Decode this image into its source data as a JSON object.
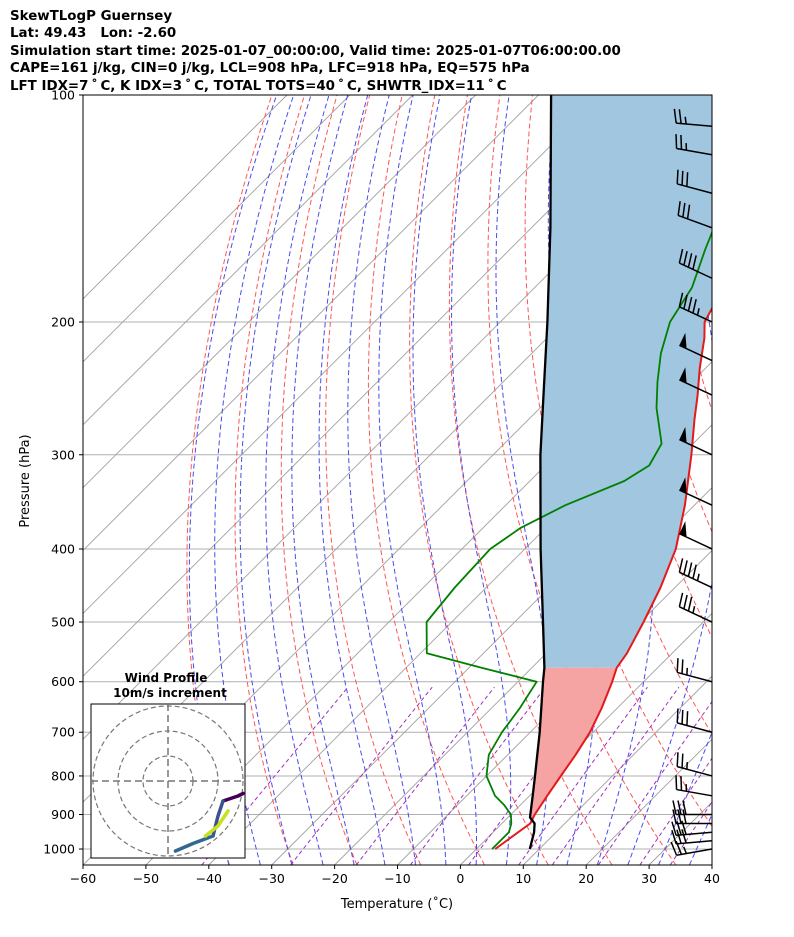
{
  "header": {
    "line1": "SkewTLogP Guernsey",
    "line2": "Lat: 49.43   Lon: -2.60",
    "line3": "Simulation start time: 2025-01-07_00:00:00, Valid time: 2025-01-07T06:00:00.00",
    "line4": "CAPE=161 j/kg, CIN=0 j/kg, LCL=908 hPa, LFC=918 hPa, EQ=575 hPa",
    "line5": "LFT IDX=7 ˚ C, K IDX=3 ˚ C, TOTAL TOTS=40 ˚ C, SHWTR_IDX=11 ˚ C"
  },
  "chart_data": {
    "type": "line",
    "subtype": "skew-t log-p",
    "xlabel": "Temperature (˚C)",
    "ylabel": "Pressure (hPa)",
    "xlim": [
      -60,
      40
    ],
    "ylim": [
      1050,
      100
    ],
    "yscale": "log",
    "x_ticks": [
      "−60",
      "−50",
      "−40",
      "−30",
      "−20",
      "−10",
      "0",
      "10",
      "20",
      "30",
      "40"
    ],
    "x_tick_values": [
      -60,
      -50,
      -40,
      -30,
      -20,
      -10,
      0,
      10,
      20,
      30,
      40
    ],
    "y_ticks": [
      "1000",
      "900",
      "800",
      "700",
      "600",
      "500",
      "400",
      "300",
      "200",
      "100"
    ],
    "y_tick_values": [
      1000,
      900,
      800,
      700,
      600,
      500,
      400,
      300,
      200,
      100
    ],
    "grid": true,
    "series": [
      {
        "color": "#e31a1c",
        "points": [
          [
            1000,
            3.0
          ],
          [
            925,
            4.5
          ],
          [
            900,
            3.8
          ],
          [
            850,
            2.8
          ],
          [
            800,
            1.8
          ],
          [
            750,
            0.8
          ],
          [
            700,
            -0.5
          ],
          [
            650,
            -2.5
          ],
          [
            600,
            -5.0
          ],
          [
            575,
            -6.5
          ],
          [
            550,
            -7.2
          ],
          [
            500,
            -9.5
          ],
          [
            450,
            -12.3
          ],
          [
            400,
            -16.0
          ],
          [
            350,
            -21.5
          ],
          [
            300,
            -28.5
          ],
          [
            270,
            -33.5
          ],
          [
            250,
            -37.0
          ],
          [
            230,
            -41.0
          ],
          [
            210,
            -45.0
          ],
          [
            200,
            -47.5
          ],
          [
            180,
            -50.0
          ],
          [
            160,
            -52.0
          ],
          [
            140,
            -54.0
          ],
          [
            120,
            -56.5
          ],
          [
            100,
            -60.5
          ]
        ]
      },
      {
        "color": "#008000",
        "points": [
          [
            1000,
            2.5
          ],
          [
            950,
            2.5
          ],
          [
            925,
            1.5
          ],
          [
            900,
            0.0
          ],
          [
            875,
            -2.5
          ],
          [
            850,
            -5.5
          ],
          [
            800,
            -10.0
          ],
          [
            750,
            -13.0
          ],
          [
            700,
            -14.5
          ],
          [
            650,
            -15.5
          ],
          [
            600,
            -17.0
          ],
          [
            575,
            -28.0
          ],
          [
            550,
            -39.0
          ],
          [
            500,
            -44.0
          ],
          [
            450,
            -45.0
          ],
          [
            400,
            -45.5
          ],
          [
            375,
            -44.0
          ],
          [
            350,
            -40.5
          ],
          [
            325,
            -35.0
          ],
          [
            310,
            -33.5
          ],
          [
            290,
            -35.0
          ],
          [
            260,
            -41.5
          ],
          [
            240,
            -45.5
          ],
          [
            220,
            -49.5
          ],
          [
            200,
            -53.0
          ],
          [
            180,
            -55.0
          ],
          [
            160,
            -59.0
          ],
          [
            150,
            -61.0
          ],
          [
            130,
            -62.0
          ],
          [
            100,
            -63.0
          ]
        ]
      },
      {
        "color": "#000000",
        "points": [
          [
            1000,
            8.5
          ],
          [
            950,
            6.5
          ],
          [
            925,
            5.2
          ],
          [
            908,
            3.5
          ],
          [
            850,
            0.5
          ],
          [
            800,
            -2.3
          ],
          [
            700,
            -8.5
          ],
          [
            600,
            -16.0
          ],
          [
            575,
            -18.0
          ],
          [
            500,
            -25.5
          ],
          [
            400,
            -37.5
          ],
          [
            300,
            -52.5
          ],
          [
            250,
            -61.5
          ],
          [
            200,
            -72.5
          ],
          [
            150,
            -87.0
          ],
          [
            100,
            -108.0
          ]
        ]
      }
    ],
    "shaded_regions": [
      {
        "color": "#a1c6e0",
        "between": "red and black lines",
        "from_hPa": 575,
        "to_hPa": 100
      },
      {
        "color": "#f5a3a3",
        "between": "red and black lines",
        "from_hPa": 918,
        "to_hPa": 575
      }
    ],
    "reference_lines": [
      {
        "kind": "isotherms",
        "color": "#aaaaaa",
        "style": "solid"
      },
      {
        "kind": "dry adiabats",
        "color": "#ff5555",
        "style": "dashed"
      },
      {
        "kind": "moist adiabats",
        "color": "#4a4af2",
        "style": "dashed"
      },
      {
        "kind": "mixing ratio",
        "color": "#9b30c0",
        "style": "dashed"
      }
    ],
    "wind_barbs": [
      {
        "p": 1000,
        "dir": 260,
        "kt": 25
      },
      {
        "p": 975,
        "dir": 265,
        "kt": 30
      },
      {
        "p": 950,
        "dir": 265,
        "kt": 30
      },
      {
        "p": 925,
        "dir": 270,
        "kt": 30
      },
      {
        "p": 900,
        "dir": 270,
        "kt": 30
      },
      {
        "p": 850,
        "dir": 280,
        "kt": 25
      },
      {
        "p": 800,
        "dir": 285,
        "kt": 25
      },
      {
        "p": 700,
        "dir": 285,
        "kt": 30
      },
      {
        "p": 600,
        "dir": 285,
        "kt": 25
      },
      {
        "p": 500,
        "dir": 295,
        "kt": 35
      },
      {
        "p": 450,
        "dir": 295,
        "kt": 45
      },
      {
        "p": 400,
        "dir": 295,
        "kt": 50
      },
      {
        "p": 350,
        "dir": 295,
        "kt": 50
      },
      {
        "p": 300,
        "dir": 295,
        "kt": 50
      },
      {
        "p": 250,
        "dir": 295,
        "kt": 50
      },
      {
        "p": 225,
        "dir": 295,
        "kt": 50
      },
      {
        "p": 200,
        "dir": 295,
        "kt": 45
      },
      {
        "p": 175,
        "dir": 295,
        "kt": 40
      },
      {
        "p": 150,
        "dir": 290,
        "kt": 30
      },
      {
        "p": 135,
        "dir": 285,
        "kt": 30
      },
      {
        "p": 120,
        "dir": 280,
        "kt": 25
      },
      {
        "p": 110,
        "dir": 275,
        "kt": 25
      }
    ],
    "wind_profile": {
      "title": "Wind Profile",
      "subtitle": "10m/s increment",
      "rings": 3,
      "hodograph": [
        {
          "color": "#440154",
          "points": [
            [
              -30,
              -5
            ],
            [
              -28,
              -6
            ],
            [
              -22,
              -8
            ]
          ]
        },
        {
          "color": "#3b528b",
          "points": [
            [
              -22,
              -8
            ],
            [
              -20,
              -14
            ],
            [
              -18,
              -22
            ]
          ]
        },
        {
          "color": "#31688e",
          "points": [
            [
              -18,
              -22
            ],
            [
              -10,
              -25
            ],
            [
              -3,
              -28
            ]
          ]
        },
        {
          "color": "#c8e020",
          "points": [
            [
              -24,
              -12
            ],
            [
              -20,
              -18
            ],
            [
              -15,
              -22
            ]
          ]
        }
      ]
    }
  }
}
